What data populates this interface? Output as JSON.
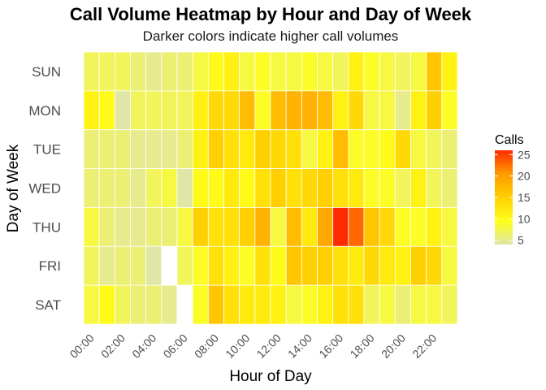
{
  "chart_data": {
    "type": "heatmap",
    "title": "Call Volume Heatmap by Hour and Day of Week",
    "subtitle": "Darker colors indicate higher call volumes",
    "xlabel": "Hour of Day",
    "ylabel": "Day of Week",
    "x": [
      "00:00",
      "01:00",
      "02:00",
      "03:00",
      "04:00",
      "05:00",
      "06:00",
      "07:00",
      "08:00",
      "09:00",
      "10:00",
      "11:00",
      "12:00",
      "13:00",
      "14:00",
      "15:00",
      "16:00",
      "17:00",
      "18:00",
      "19:00",
      "20:00",
      "21:00",
      "22:00",
      "23:00"
    ],
    "x_tick_labels": [
      "00:00",
      "02:00",
      "04:00",
      "06:00",
      "08:00",
      "10:00",
      "12:00",
      "14:00",
      "16:00",
      "18:00",
      "20:00",
      "22:00"
    ],
    "y": [
      "SUN",
      "MON",
      "TUE",
      "WED",
      "THU",
      "FRI",
      "SAT"
    ],
    "values": [
      [
        7,
        7,
        7,
        6,
        5,
        6,
        6,
        8,
        10,
        11,
        8,
        9,
        8,
        8,
        9,
        8,
        7,
        11,
        9,
        8,
        7,
        8,
        16,
        11
      ],
      [
        11,
        10,
        4,
        7,
        7,
        7,
        7,
        11,
        14,
        14,
        17,
        9,
        17,
        18,
        18,
        17,
        11,
        14,
        8,
        8,
        5,
        11,
        15,
        9
      ],
      [
        6,
        6,
        6,
        5,
        5,
        5,
        6,
        11,
        15,
        13,
        12,
        15,
        14,
        13,
        8,
        11,
        17,
        9,
        9,
        10,
        14,
        8,
        7,
        6
      ],
      [
        6,
        6,
        6,
        5,
        7,
        8,
        4,
        10,
        10,
        12,
        10,
        13,
        15,
        13,
        14,
        15,
        13,
        12,
        9,
        9,
        7,
        11,
        7,
        6
      ],
      [
        8,
        6,
        5,
        5,
        6,
        6,
        8,
        15,
        13,
        13,
        15,
        18,
        8,
        17,
        12,
        19,
        26,
        23,
        16,
        14,
        9,
        9,
        11,
        8
      ],
      [
        7,
        5,
        6,
        6,
        4,
        null,
        7,
        9,
        13,
        11,
        9,
        13,
        10,
        16,
        15,
        15,
        13,
        12,
        14,
        12,
        11,
        15,
        14,
        8
      ],
      [
        8,
        10,
        7,
        6,
        6,
        5,
        null,
        9,
        16,
        13,
        12,
        12,
        11,
        8,
        9,
        11,
        13,
        13,
        7,
        8,
        6,
        8,
        8,
        7
      ]
    ],
    "legend": {
      "title": "Calls",
      "ticks": [
        5,
        10,
        15,
        20,
        25
      ],
      "range": [
        4,
        26
      ],
      "placement": "right"
    },
    "color_scale": [
      "#e0e6a8",
      "#ffff1a",
      "#ffd000",
      "#ff9a00",
      "#ff2a00"
    ],
    "missing_color": "#ffffff",
    "grid": false,
    "background": "#ffffff"
  }
}
